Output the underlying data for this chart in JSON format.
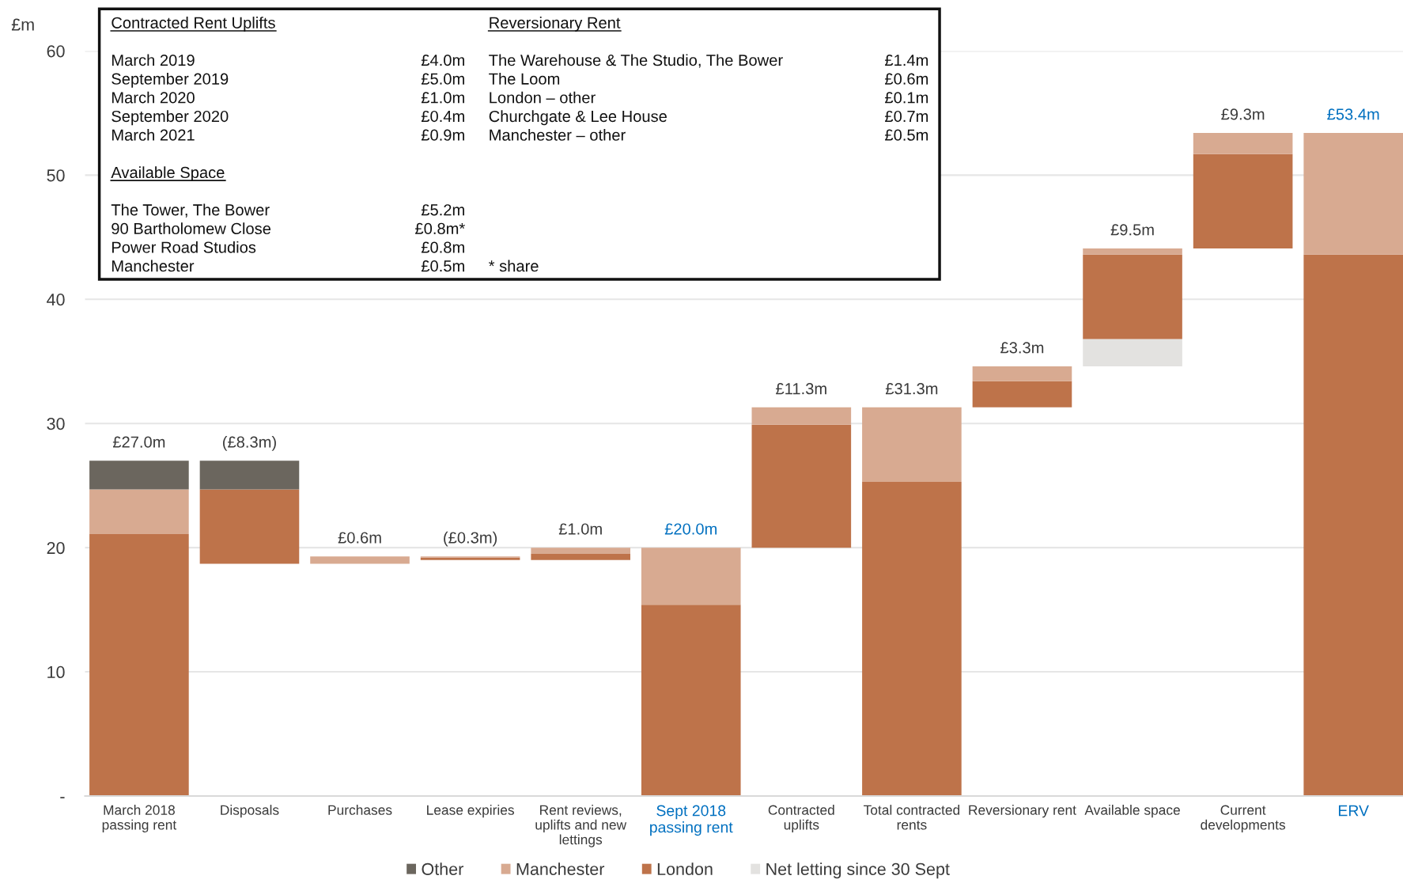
{
  "chart_data": {
    "type": "bar",
    "ylabel": "£m",
    "categories": [
      "March 2018\npassing rent",
      "Disposals",
      "Purchases",
      "Lease expiries",
      "Rent reviews,\nuplifts and new\nlettings",
      "Sept 2018\npassing rent",
      "Contracted\nuplifts",
      "Total contracted\nrents",
      "Reversionary rent",
      "Available space",
      "Current\ndevelopments",
      "ERV"
    ],
    "series": [
      {
        "name": "Net letting since 30 Sept",
        "color": "#e3e2e0",
        "values": [
          null,
          null,
          null,
          null,
          null,
          null,
          null,
          null,
          null,
          2.2,
          null,
          null
        ],
        "base": [
          null,
          null,
          null,
          null,
          null,
          null,
          null,
          null,
          null,
          34.6,
          null,
          null
        ]
      },
      {
        "name": "London",
        "color": "#be734a",
        "values": [
          21.1,
          6.0,
          null,
          0.2,
          0.5,
          15.4,
          9.9,
          25.3,
          2.1,
          6.8,
          7.6,
          43.6
        ],
        "base": [
          0,
          18.7,
          null,
          19.0,
          19.0,
          0,
          20.0,
          0,
          31.3,
          36.8,
          44.1,
          0
        ]
      },
      {
        "name": "Manchester",
        "color": "#d8aa91",
        "values": [
          3.6,
          null,
          0.6,
          0.1,
          0.5,
          4.6,
          1.4,
          6.0,
          1.2,
          0.5,
          1.7,
          9.8
        ],
        "base": [
          21.1,
          null,
          18.7,
          19.2,
          19.5,
          15.4,
          29.9,
          25.3,
          33.4,
          43.6,
          51.7,
          43.6
        ]
      },
      {
        "name": "Other",
        "color": "#6b665e",
        "values": [
          2.3,
          2.3,
          null,
          null,
          null,
          null,
          null,
          null,
          null,
          null,
          null,
          null
        ],
        "base": [
          24.7,
          24.7,
          null,
          null,
          null,
          null,
          null,
          null,
          null,
          null,
          null,
          null
        ]
      }
    ],
    "ylim": [
      0,
      60
    ],
    "yticks": [
      {
        "value": 0,
        "label": "-"
      },
      10,
      20,
      30,
      40,
      50,
      60
    ],
    "grid": "y",
    "legend": "bottom",
    "annotations": [
      {
        "text": "£27.0m",
        "x": "March 2018\npassing rent",
        "y": 27.0
      },
      {
        "text": "(£8.3m)",
        "x": "Disposals",
        "y": 27.0
      },
      {
        "text": "£0.6m",
        "x": "Purchases",
        "y": 19.3
      },
      {
        "text": "(£0.3m)",
        "x": "Lease expiries",
        "y": 19.3
      },
      {
        "text": "£1.0m",
        "x": "Rent reviews,\nuplifts and new\nlettings",
        "y": 20.0
      },
      {
        "text": "£20.0m",
        "x": "Sept 2018\npassing rent",
        "y": 20.0
      },
      {
        "text": "£11.3m",
        "x": "Contracted\nuplifts",
        "y": 31.3
      },
      {
        "text": "£31.3m",
        "x": "Total contracted\nrents",
        "y": 31.3
      },
      {
        "text": "£3.3m",
        "x": "Reversionary rent",
        "y": 34.6
      },
      {
        "text": "£9.5m",
        "x": "Available space",
        "y": 44.1
      },
      {
        "text": "£9.3m",
        "x": "Current\ndevelopments",
        "y": 53.4
      },
      {
        "text": "£53.4m",
        "x": "ERV",
        "y": 53.4
      },
      "Contracted Rent Uplifts",
      "March 2019",
      "£4.0m",
      "September 2019",
      "£5.0m",
      "March 2020",
      "£1.0m",
      "September 2020",
      "£0.4m",
      "March 2021",
      "£0.9m",
      "Available Space",
      "The Tower, The Bower",
      "£5.2m",
      "90 Bartholomew Close",
      "£0.8m*",
      "Power Road Studios",
      "£0.8m",
      "Manchester",
      "£0.5m",
      "Reversionary Rent",
      "The Warehouse & The Studio, The Bower",
      "£1.4m",
      "The Loom",
      "£0.6m",
      "London – other",
      "£0.1m",
      "Churchgate & Lee House",
      "£0.7m",
      "Manchester – other",
      "£0.5m",
      "* share"
    ]
  }
}
